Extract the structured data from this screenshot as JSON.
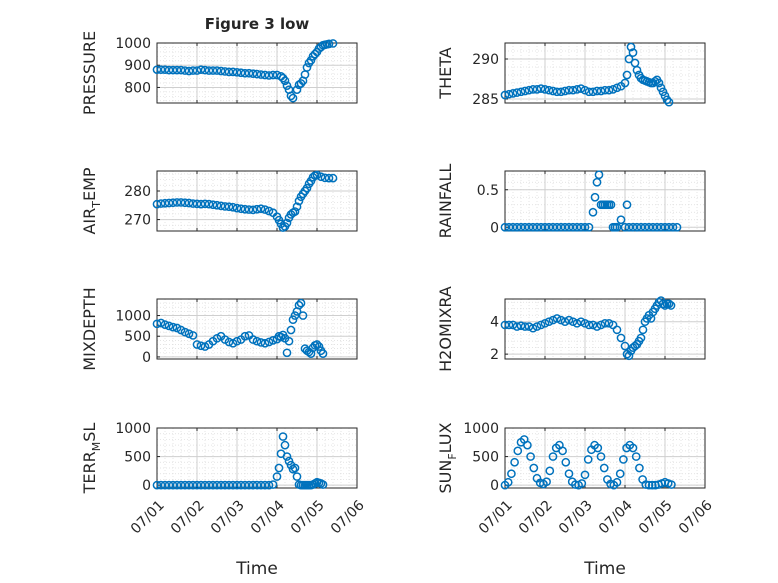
{
  "figure": {
    "title": "Figure 3 low",
    "xlabel": "Time"
  },
  "colors": {
    "marker": "#0072BD",
    "grid": "#dcdcdc",
    "axis": "#262626"
  },
  "chart_data": [
    {
      "type": "scatter",
      "id": "pressure",
      "ylabel": "PRESSURE",
      "ylabel_sub": "",
      "xticks": [
        "07/01",
        "07/02",
        "07/03",
        "07/04",
        "07/05",
        "07/06"
      ],
      "xlim": [
        0,
        5
      ],
      "ylim": [
        730,
        1000
      ],
      "yticks": [
        800,
        900,
        1000
      ],
      "grid": true,
      "x": [
        0.0,
        0.1,
        0.2,
        0.3,
        0.4,
        0.5,
        0.6,
        0.7,
        0.8,
        0.9,
        1.0,
        1.1,
        1.2,
        1.3,
        1.4,
        1.5,
        1.6,
        1.7,
        1.8,
        1.9,
        2.0,
        2.1,
        2.2,
        2.3,
        2.4,
        2.5,
        2.6,
        2.7,
        2.8,
        2.9,
        3.0,
        3.1,
        3.15,
        3.2,
        3.25,
        3.3,
        3.35,
        3.4,
        3.5,
        3.55,
        3.6,
        3.65,
        3.7,
        3.75,
        3.8,
        3.85,
        3.9,
        3.95,
        4.0,
        4.05,
        4.1,
        4.15,
        4.2,
        4.25,
        4.3,
        4.4
      ],
      "y": [
        880,
        880,
        880,
        878,
        878,
        878,
        878,
        876,
        874,
        876,
        876,
        880,
        878,
        876,
        876,
        876,
        874,
        872,
        870,
        870,
        868,
        866,
        864,
        864,
        862,
        860,
        858,
        856,
        854,
        856,
        856,
        850,
        842,
        830,
        808,
        790,
        762,
        752,
        790,
        812,
        818,
        830,
        858,
        890,
        910,
        922,
        940,
        950,
        960,
        975,
        982,
        990,
        992,
        994,
        996,
        998
      ]
    },
    {
      "type": "scatter",
      "id": "theta",
      "ylabel": "THETA",
      "ylabel_sub": "",
      "xticks": [
        "07/01",
        "07/02",
        "07/03",
        "07/04",
        "07/05",
        "07/06"
      ],
      "xlim": [
        0,
        5
      ],
      "ylim": [
        284.5,
        292
      ],
      "yticks": [
        285,
        290
      ],
      "grid": true,
      "x": [
        0.0,
        0.1,
        0.2,
        0.3,
        0.4,
        0.5,
        0.6,
        0.7,
        0.8,
        0.9,
        1.0,
        1.1,
        1.2,
        1.3,
        1.4,
        1.5,
        1.6,
        1.7,
        1.8,
        1.9,
        2.0,
        2.1,
        2.2,
        2.3,
        2.4,
        2.5,
        2.6,
        2.7,
        2.8,
        2.9,
        3.0,
        3.05,
        3.1,
        3.15,
        3.2,
        3.25,
        3.3,
        3.35,
        3.4,
        3.45,
        3.5,
        3.55,
        3.6,
        3.65,
        3.7,
        3.75,
        3.8,
        3.85,
        3.9,
        3.95,
        4.0,
        4.05,
        4.1
      ],
      "y": [
        285.5,
        285.6,
        285.7,
        285.8,
        285.9,
        286.0,
        286.1,
        286.2,
        286.2,
        286.3,
        286.2,
        286.1,
        286.0,
        285.9,
        285.9,
        286.0,
        286.1,
        286.1,
        286.2,
        286.3,
        286.1,
        285.9,
        285.9,
        286.0,
        286.0,
        286.1,
        286.1,
        286.2,
        286.4,
        286.6,
        287.0,
        288.0,
        290.0,
        291.5,
        290.8,
        289.5,
        288.6,
        288.0,
        287.6,
        287.4,
        287.3,
        287.2,
        287.1,
        287.0,
        287.0,
        287.2,
        287.4,
        287.0,
        286.4,
        285.9,
        285.4,
        284.9,
        284.6
      ]
    },
    {
      "type": "scatter",
      "id": "air_temp",
      "ylabel": "AIR",
      "ylabel_sub": "T",
      "ylabel_after": "EMP",
      "xticks": [
        "07/01",
        "07/02",
        "07/03",
        "07/04",
        "07/05",
        "07/06"
      ],
      "xlim": [
        0,
        5
      ],
      "ylim": [
        266,
        287
      ],
      "yticks": [
        270,
        280
      ],
      "grid": true,
      "x": [
        0.0,
        0.1,
        0.2,
        0.3,
        0.4,
        0.5,
        0.6,
        0.7,
        0.8,
        0.9,
        1.0,
        1.1,
        1.2,
        1.3,
        1.4,
        1.5,
        1.6,
        1.7,
        1.8,
        1.9,
        2.0,
        2.1,
        2.2,
        2.3,
        2.4,
        2.5,
        2.6,
        2.7,
        2.8,
        2.9,
        3.0,
        3.05,
        3.1,
        3.15,
        3.2,
        3.25,
        3.3,
        3.35,
        3.4,
        3.45,
        3.5,
        3.55,
        3.6,
        3.65,
        3.7,
        3.75,
        3.8,
        3.85,
        3.9,
        3.95,
        4.0,
        4.1,
        4.2,
        4.3,
        4.4
      ],
      "y": [
        275.4,
        275.6,
        275.7,
        275.8,
        275.9,
        276.0,
        276.0,
        275.9,
        275.8,
        275.6,
        275.5,
        275.4,
        275.5,
        275.4,
        275.2,
        275.0,
        274.8,
        274.6,
        274.5,
        274.3,
        274.0,
        273.8,
        273.6,
        273.5,
        273.4,
        273.6,
        273.8,
        273.5,
        273.0,
        272.4,
        271.0,
        269.8,
        268.5,
        267.2,
        267.6,
        268.8,
        270.6,
        271.8,
        272.4,
        272.8,
        274.5,
        276.5,
        278.0,
        279.0,
        280.0,
        281.0,
        282.5,
        283.5,
        284.8,
        285.4,
        285.6,
        285.0,
        284.6,
        284.5,
        284.5
      ]
    },
    {
      "type": "scatter",
      "id": "rainfall",
      "ylabel": "RAINFALL",
      "ylabel_sub": "",
      "xticks": [
        "07/01",
        "07/02",
        "07/03",
        "07/04",
        "07/05",
        "07/06"
      ],
      "xlim": [
        0,
        5
      ],
      "ylim": [
        -0.05,
        0.75
      ],
      "yticks": [
        0,
        0.5
      ],
      "grid": true,
      "x": [
        0.0,
        0.1,
        0.2,
        0.3,
        0.4,
        0.5,
        0.6,
        0.7,
        0.8,
        0.9,
        1.0,
        1.1,
        1.2,
        1.3,
        1.4,
        1.5,
        1.6,
        1.7,
        1.8,
        1.9,
        2.0,
        2.1,
        2.2,
        2.25,
        2.3,
        2.35,
        2.4,
        2.45,
        2.5,
        2.55,
        2.6,
        2.65,
        2.7,
        2.75,
        2.8,
        2.9,
        3.0,
        3.05,
        3.1,
        3.2,
        3.3,
        3.4,
        3.5,
        3.6,
        3.7,
        3.8,
        3.9,
        4.0,
        4.1,
        4.2,
        4.3
      ],
      "y": [
        0,
        0,
        0,
        0,
        0,
        0,
        0,
        0,
        0,
        0,
        0,
        0,
        0,
        0,
        0,
        0,
        0,
        0,
        0,
        0,
        0,
        0,
        0.2,
        0.4,
        0.6,
        0.7,
        0.3,
        0.3,
        0.3,
        0.3,
        0.3,
        0.3,
        0,
        0,
        0,
        0.1,
        0,
        0.3,
        0,
        0,
        0,
        0,
        0,
        0,
        0,
        0,
        0,
        0,
        0,
        0,
        0
      ]
    },
    {
      "type": "scatter",
      "id": "mixdepth",
      "ylabel": "MIXDEPTH",
      "ylabel_sub": "",
      "xticks": [
        "07/01",
        "07/02",
        "07/03",
        "07/04",
        "07/05",
        "07/06"
      ],
      "xlim": [
        0,
        5
      ],
      "ylim": [
        -50,
        1400
      ],
      "yticks": [
        0,
        500,
        1000
      ],
      "grid": true,
      "x": [
        0.0,
        0.1,
        0.2,
        0.3,
        0.4,
        0.5,
        0.6,
        0.7,
        0.8,
        0.9,
        1.0,
        1.1,
        1.2,
        1.3,
        1.4,
        1.5,
        1.6,
        1.7,
        1.8,
        1.9,
        2.0,
        2.1,
        2.2,
        2.3,
        2.4,
        2.5,
        2.6,
        2.7,
        2.8,
        2.9,
        3.0,
        3.05,
        3.1,
        3.15,
        3.2,
        3.25,
        3.3,
        3.35,
        3.4,
        3.45,
        3.5,
        3.55,
        3.6,
        3.65,
        3.7,
        3.75,
        3.8,
        3.85,
        3.9,
        3.95,
        4.0,
        4.05,
        4.1,
        4.15
      ],
      "y": [
        800,
        820,
        780,
        750,
        720,
        700,
        650,
        600,
        560,
        520,
        300,
        270,
        250,
        300,
        380,
        450,
        500,
        420,
        360,
        330,
        380,
        420,
        500,
        520,
        420,
        380,
        350,
        330,
        360,
        400,
        430,
        500,
        480,
        530,
        450,
        100,
        380,
        650,
        900,
        1000,
        1100,
        1250,
        1300,
        1000,
        200,
        150,
        120,
        80,
        220,
        280,
        300,
        250,
        150,
        80
      ]
    },
    {
      "type": "scatter",
      "id": "h2omixra",
      "ylabel": "H2OMIXRA",
      "ylabel_sub": "",
      "xticks": [
        "07/01",
        "07/02",
        "07/03",
        "07/04",
        "07/05",
        "07/06"
      ],
      "xlim": [
        0,
        5
      ],
      "ylim": [
        1.7,
        5.4
      ],
      "yticks": [
        2,
        4
      ],
      "grid": true,
      "x": [
        0.0,
        0.1,
        0.2,
        0.3,
        0.4,
        0.5,
        0.6,
        0.7,
        0.8,
        0.9,
        1.0,
        1.1,
        1.2,
        1.3,
        1.4,
        1.5,
        1.6,
        1.7,
        1.8,
        1.9,
        2.0,
        2.1,
        2.2,
        2.3,
        2.4,
        2.5,
        2.6,
        2.7,
        2.8,
        2.9,
        3.0,
        3.05,
        3.1,
        3.15,
        3.2,
        3.25,
        3.3,
        3.35,
        3.4,
        3.45,
        3.5,
        3.55,
        3.6,
        3.65,
        3.7,
        3.75,
        3.8,
        3.85,
        3.9,
        3.95,
        4.0,
        4.05,
        4.1,
        4.15
      ],
      "y": [
        3.8,
        3.8,
        3.8,
        3.7,
        3.75,
        3.7,
        3.7,
        3.6,
        3.7,
        3.8,
        3.9,
        4.0,
        4.1,
        4.2,
        4.1,
        4.0,
        4.1,
        4.0,
        3.9,
        4.0,
        3.9,
        3.8,
        3.8,
        3.7,
        3.8,
        3.9,
        3.9,
        3.8,
        3.5,
        3.0,
        2.5,
        2.0,
        1.9,
        2.2,
        2.4,
        2.5,
        2.6,
        2.8,
        3.0,
        3.5,
        4.0,
        4.2,
        4.4,
        4.2,
        4.6,
        4.8,
        5.0,
        5.2,
        5.3,
        5.1,
        5.0,
        5.1,
        5.1,
        5.0
      ]
    },
    {
      "type": "scatter",
      "id": "terr_msl",
      "ylabel": "TERR",
      "ylabel_sub": "M",
      "ylabel_after": "SL",
      "xticks": [
        "07/01",
        "07/02",
        "07/03",
        "07/04",
        "07/05",
        "07/06"
      ],
      "xlim": [
        0,
        5
      ],
      "ylim": [
        -50,
        1000
      ],
      "yticks": [
        0,
        500,
        1000
      ],
      "grid": true,
      "x": [
        0.0,
        0.1,
        0.2,
        0.3,
        0.4,
        0.5,
        0.6,
        0.7,
        0.8,
        0.9,
        1.0,
        1.1,
        1.2,
        1.3,
        1.4,
        1.5,
        1.6,
        1.7,
        1.8,
        1.9,
        2.0,
        2.1,
        2.2,
        2.3,
        2.4,
        2.5,
        2.6,
        2.7,
        2.8,
        2.9,
        3.0,
        3.05,
        3.1,
        3.15,
        3.2,
        3.25,
        3.3,
        3.35,
        3.4,
        3.45,
        3.5,
        3.55,
        3.6,
        3.65,
        3.7,
        3.75,
        3.8,
        3.85,
        3.9,
        3.95,
        4.0,
        4.05,
        4.1,
        4.15
      ],
      "y": [
        0,
        0,
        0,
        0,
        0,
        0,
        0,
        0,
        0,
        0,
        0,
        0,
        0,
        0,
        0,
        0,
        0,
        0,
        0,
        0,
        0,
        0,
        0,
        0,
        0,
        0,
        0,
        0,
        0,
        10,
        150,
        300,
        550,
        850,
        700,
        500,
        420,
        350,
        280,
        300,
        150,
        10,
        0,
        0,
        0,
        0,
        0,
        0,
        10,
        30,
        50,
        40,
        30,
        10
      ]
    },
    {
      "type": "scatter",
      "id": "sun_flux",
      "ylabel": "SUN",
      "ylabel_sub": "F",
      "ylabel_after": "LUX",
      "xticks": [
        "07/01",
        "07/02",
        "07/03",
        "07/04",
        "07/05",
        "07/06"
      ],
      "xlim": [
        0,
        5
      ],
      "ylim": [
        -50,
        1000
      ],
      "yticks": [
        0,
        500,
        1000
      ],
      "grid": true,
      "x": [
        0.0,
        0.08,
        0.16,
        0.24,
        0.32,
        0.4,
        0.48,
        0.56,
        0.64,
        0.72,
        0.8,
        0.88,
        0.96,
        1.04,
        1.12,
        1.2,
        1.28,
        1.36,
        1.44,
        1.52,
        1.6,
        1.68,
        1.76,
        1.84,
        1.92,
        2.0,
        2.08,
        2.16,
        2.24,
        2.32,
        2.4,
        2.48,
        2.56,
        2.64,
        2.72,
        2.8,
        2.88,
        2.96,
        3.04,
        3.12,
        3.2,
        3.28,
        3.36,
        3.44,
        3.52,
        3.6,
        3.68,
        3.76,
        3.84,
        3.92,
        4.0,
        4.08,
        4.16
      ],
      "y": [
        0,
        50,
        200,
        400,
        600,
        750,
        800,
        700,
        500,
        300,
        120,
        40,
        20,
        60,
        250,
        500,
        650,
        700,
        600,
        400,
        200,
        60,
        10,
        0,
        30,
        180,
        450,
        620,
        700,
        650,
        500,
        300,
        100,
        20,
        0,
        50,
        200,
        450,
        650,
        700,
        650,
        500,
        300,
        100,
        10,
        0,
        0,
        0,
        10,
        30,
        50,
        30,
        10
      ]
    }
  ]
}
